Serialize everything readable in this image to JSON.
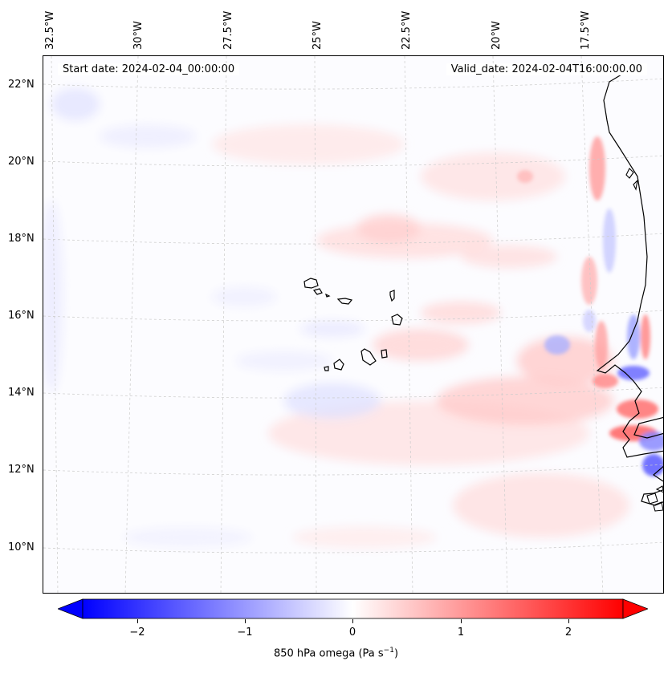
{
  "map": {
    "start_date": "Start date: 2024-02-04_00:00:00",
    "valid_date": "Valid_date: 2024-02-04T16:00:00.00",
    "lon_labels": [
      "32.5°W",
      "30°W",
      "27.5°W",
      "25°W",
      "22.5°W",
      "20°W",
      "17.5°W"
    ],
    "lat_labels": [
      "22°N",
      "20°N",
      "18°N",
      "16°N",
      "14°N",
      "12°N",
      "10°N"
    ],
    "colorbar": {
      "ticks": [
        "−2",
        "−1",
        "0",
        "1",
        "2"
      ],
      "range": [
        -2.5,
        2.5
      ],
      "label_prefix": "850 hPa omega (Pa s",
      "label_exp": "−1",
      "label_suffix": ")",
      "colormap": "bwr",
      "extend": "both",
      "color_min": "#0000ff",
      "color_mid": "#ffffff",
      "color_max": "#ff0000"
    },
    "features": [
      "coastline",
      "cape-verde-islands",
      "gridlines"
    ]
  }
}
